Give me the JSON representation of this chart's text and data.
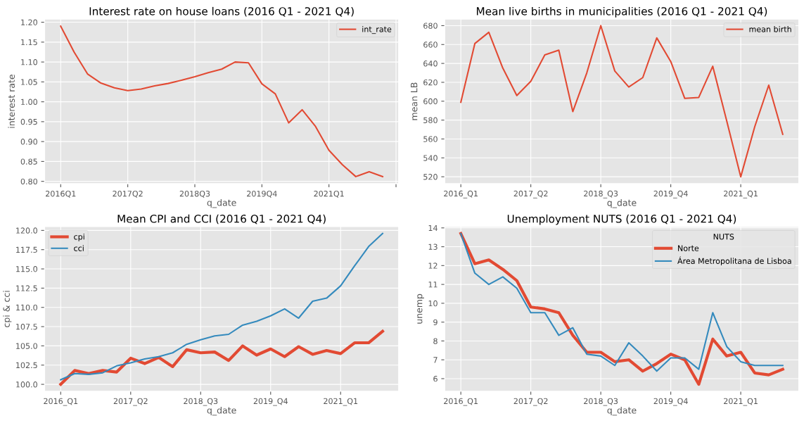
{
  "chart_data": [
    {
      "type": "line",
      "title": "Interest rate on house loans (2016 Q1 - 2021 Q4)",
      "xlabel": "q_date",
      "ylabel": "interest rate",
      "categories": [
        "2016Q1",
        null,
        null,
        null,
        null,
        "2017Q2",
        null,
        null,
        null,
        null,
        "2018Q3",
        null,
        null,
        null,
        null,
        "2019Q4",
        null,
        null,
        null,
        null,
        "2021Q1",
        null,
        null,
        null,
        null
      ],
      "series": [
        {
          "name": "int_rate",
          "color": "#e24a33",
          "values": [
            1.19,
            1.125,
            1.07,
            1.047,
            1.035,
            1.028,
            1.032,
            1.04,
            1.046,
            1.054,
            1.063,
            1.073,
            1.082,
            1.1,
            1.098,
            1.045,
            1.02,
            0.947,
            0.98,
            0.938,
            0.878,
            0.842,
            0.812,
            0.824,
            0.812
          ]
        }
      ],
      "ylim": [
        0.794,
        1.208
      ],
      "yticks": [
        {
          "value": 0.8,
          "label": "0.80"
        },
        {
          "value": 0.85,
          "label": "0.85"
        },
        {
          "value": 0.9,
          "label": "0.90"
        },
        {
          "value": 0.95,
          "label": "0.95"
        },
        {
          "value": 1.0,
          "label": "1.00"
        },
        {
          "value": 1.05,
          "label": "1.05"
        },
        {
          "value": 1.1,
          "label": "1.10"
        },
        {
          "value": 1.15,
          "label": "1.15"
        },
        {
          "value": 1.2,
          "label": "1.20"
        }
      ],
      "grid": true,
      "legend": "top right"
    },
    {
      "type": "line",
      "title": "Mean live births in municipalities (2016 Q1 - 2021 Q4)",
      "xlabel": "q_date",
      "ylabel": "mean LB",
      "categories": [
        "2016_Q1",
        null,
        null,
        null,
        null,
        "2017_Q2",
        null,
        null,
        null,
        null,
        "2018_Q3",
        null,
        null,
        null,
        null,
        "2019_Q4",
        null,
        null,
        null,
        null,
        "2021_Q1",
        null,
        null,
        null
      ],
      "series": [
        {
          "name": "mean birth",
          "color": "#e24a33",
          "values": [
            599,
            661,
            673,
            635,
            606,
            621,
            649,
            654,
            589,
            630,
            680,
            632,
            615,
            625,
            667,
            642,
            603,
            604,
            637,
            579,
            520,
            573,
            617,
            565
          ]
        }
      ],
      "ylim": [
        512.6,
        687
      ],
      "yticks": [
        520,
        540,
        560,
        580,
        600,
        620,
        640,
        660,
        680
      ],
      "grid": true,
      "legend": "top right"
    },
    {
      "type": "line",
      "title": "Mean CPI and CCI (2016 Q1 - 2021 Q4)",
      "xlabel": "q_date",
      "ylabel": "cpi & cci",
      "categories": [
        "2016_Q1",
        null,
        null,
        null,
        null,
        "2017_Q2",
        null,
        null,
        null,
        null,
        "2018_Q3",
        null,
        null,
        null,
        null,
        "2019_Q4",
        null,
        null,
        null,
        null,
        "2021_Q1",
        null,
        null,
        null
      ],
      "series": [
        {
          "name": "cpi",
          "color": "#e24a33",
          "values": [
            100.0,
            101.8,
            101.4,
            101.8,
            101.6,
            103.4,
            102.7,
            103.5,
            102.3,
            104.5,
            104.1,
            104.2,
            103.1,
            105.0,
            103.8,
            104.6,
            103.6,
            104.9,
            103.9,
            104.4,
            104.0,
            105.4,
            105.4,
            106.9
          ]
        },
        {
          "name": "cci",
          "color": "#348abd",
          "values": [
            100.6,
            101.4,
            101.3,
            101.5,
            102.4,
            102.8,
            103.3,
            103.6,
            104.1,
            105.2,
            105.8,
            106.3,
            106.5,
            107.7,
            108.2,
            108.9,
            109.8,
            108.6,
            110.8,
            111.2,
            112.8,
            115.4,
            117.9,
            119.6
          ]
        }
      ],
      "ylim": [
        99.1,
        120.5
      ],
      "yticks": [
        {
          "value": 100,
          "label": "100.0"
        },
        {
          "value": 102.5,
          "label": "102.5"
        },
        {
          "value": 105,
          "label": "105.0"
        },
        {
          "value": 107.5,
          "label": "107.5"
        },
        {
          "value": 110,
          "label": "110.0"
        },
        {
          "value": 112.5,
          "label": "112.5"
        },
        {
          "value": 115,
          "label": "115.0"
        },
        {
          "value": 117.5,
          "label": "117.5"
        },
        {
          "value": 120,
          "label": "120.0"
        }
      ],
      "grid": true,
      "legend": "top left"
    },
    {
      "type": "line",
      "title": "Unemployment NUTS (2016 Q1 - 2021 Q4)",
      "xlabel": "q_date",
      "ylabel": "unemp",
      "legend_title": "NUTS",
      "categories": [
        "2016_Q1",
        null,
        null,
        null,
        null,
        "2017_Q2",
        null,
        null,
        null,
        null,
        "2018_Q3",
        null,
        null,
        null,
        null,
        "2019_Q4",
        null,
        null,
        null,
        null,
        "2021_Q1",
        null,
        null,
        null
      ],
      "series": [
        {
          "name": "Norte",
          "color": "#e24a33",
          "values": [
            13.7,
            12.1,
            12.3,
            11.8,
            11.2,
            9.8,
            9.7,
            9.5,
            8.3,
            7.4,
            7.4,
            6.9,
            7.0,
            6.4,
            6.8,
            7.3,
            7.0,
            5.7,
            8.1,
            7.2,
            7.4,
            6.3,
            6.2,
            6.5
          ]
        },
        {
          "name": "Área Metropolitana de Lisboa",
          "color": "#348abd",
          "values": [
            13.7,
            11.6,
            11.0,
            11.4,
            10.8,
            9.5,
            9.5,
            8.3,
            8.7,
            7.3,
            7.2,
            6.7,
            7.9,
            7.2,
            6.4,
            7.1,
            7.1,
            6.5,
            9.5,
            7.7,
            6.9,
            6.7,
            6.7,
            6.7
          ]
        }
      ],
      "ylim": [
        5.33,
        14.07
      ],
      "yticks": [
        6,
        7,
        8,
        9,
        10,
        11,
        12,
        13,
        14
      ],
      "grid": true,
      "legend": "top right"
    }
  ]
}
